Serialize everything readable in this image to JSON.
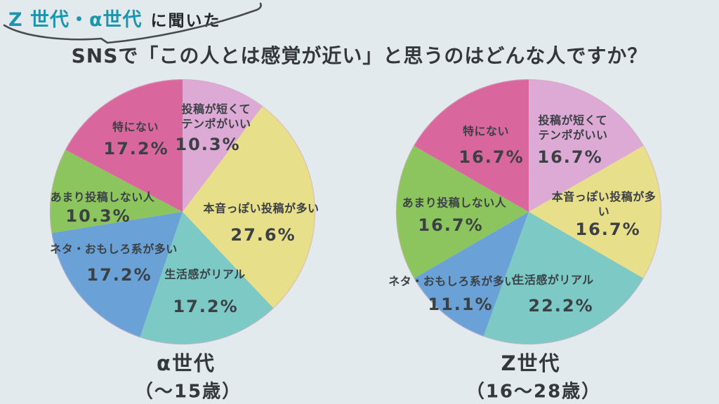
{
  "header": {
    "highlight": "Z 世代・α世代",
    "suffix": "に聞いた",
    "highlight_color": "#1b96af"
  },
  "title": "SNSで「この人とは感覚が近い」と思うのはどんな人ですか？",
  "background_color": "#e2eaed",
  "text_color": "#3b4045",
  "chart_data": [
    {
      "type": "pie",
      "caption_line1": "α世代",
      "caption_line2": "（～15歳）",
      "start_angle": "12-oclock",
      "direction": "clockwise",
      "legend_position": "labels-inside-slices",
      "labels": [
        "投稿が短くて\nテンポがいい",
        "本音っぽい投稿が多い",
        "生活感がリアル",
        "ネタ・おもしろ系が多い",
        "あまり投稿しない人",
        "特にない"
      ],
      "values": [
        10.3,
        27.6,
        17.2,
        17.2,
        10.3,
        17.2
      ],
      "display_values": [
        "10.3%",
        "27.6%",
        "17.2%",
        "17.2%",
        "10.3%",
        "17.2%"
      ],
      "colors": [
        "#dcaad5",
        "#e8df8a",
        "#7cc9c6",
        "#6aa2d8",
        "#8cc55d",
        "#d9679d"
      ]
    },
    {
      "type": "pie",
      "caption_line1": "Z世代",
      "caption_line2": "（16～28歳）",
      "start_angle": "12-oclock",
      "direction": "clockwise",
      "legend_position": "labels-inside-slices",
      "labels": [
        "投稿が短くて\nテンポがいい",
        "本音っぽい投稿が多い",
        "生活感がリアル",
        "ネタ・おもしろ系が多い",
        "あまり投稿しない人",
        "特にない"
      ],
      "values": [
        16.7,
        16.7,
        22.2,
        11.1,
        16.7,
        16.7
      ],
      "display_values": [
        "16.7%",
        "16.7%",
        "22.2%",
        "11.1%",
        "16.7%",
        "16.7%"
      ],
      "colors": [
        "#dcaad5",
        "#e8df8a",
        "#7cc9c6",
        "#6aa2d8",
        "#8cc55d",
        "#d9679d"
      ]
    }
  ]
}
